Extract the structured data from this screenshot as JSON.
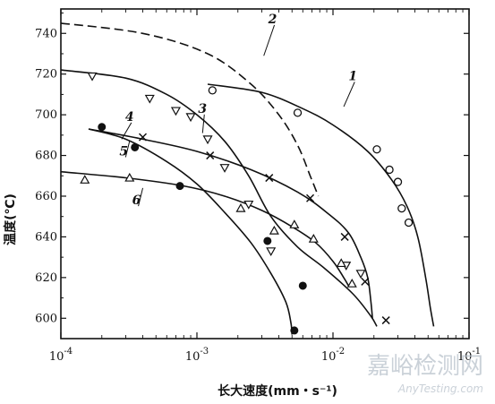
{
  "chart_data": {
    "type": "line",
    "xlabel": "长大速度(mm・s⁻¹)",
    "ylabel": "温度(℃)",
    "x_scale": "log",
    "xlim": [
      0.0001,
      0.1
    ],
    "ylim": [
      590,
      752
    ],
    "x_ticks": [
      {
        "value": 0.0001,
        "base": "10",
        "exp": "-4"
      },
      {
        "value": 0.001,
        "base": "10",
        "exp": "-3"
      },
      {
        "value": 0.01,
        "base": "10",
        "exp": "-2"
      },
      {
        "value": 0.1,
        "base": "10",
        "exp": "-1"
      }
    ],
    "y_ticks": [
      600,
      620,
      640,
      660,
      680,
      700,
      720,
      740
    ],
    "grid": false,
    "legend": "none",
    "series": [
      {
        "name": "1",
        "style": "solid",
        "marker": "circle-open",
        "line": [
          [
            0.0012,
            715
          ],
          [
            0.003,
            711
          ],
          [
            0.006,
            703
          ],
          [
            0.01,
            695
          ],
          [
            0.018,
            682
          ],
          [
            0.027,
            668
          ],
          [
            0.035,
            655
          ],
          [
            0.042,
            640
          ],
          [
            0.048,
            620
          ],
          [
            0.052,
            605
          ],
          [
            0.055,
            596
          ]
        ],
        "points": [
          [
            0.0013,
            712
          ],
          [
            0.0055,
            701
          ],
          [
            0.021,
            683
          ],
          [
            0.026,
            673
          ],
          [
            0.03,
            667
          ],
          [
            0.032,
            654
          ],
          [
            0.036,
            647
          ]
        ]
      },
      {
        "name": "2",
        "style": "dashed",
        "marker": "none",
        "line": [
          [
            0.0001,
            745
          ],
          [
            0.0004,
            740
          ],
          [
            0.0012,
            730
          ],
          [
            0.0025,
            715
          ],
          [
            0.004,
            700
          ],
          [
            0.0055,
            685
          ],
          [
            0.0068,
            670
          ],
          [
            0.0078,
            660
          ]
        ],
        "points": []
      },
      {
        "name": "3",
        "style": "solid",
        "marker": "triangle-down-open",
        "line": [
          [
            0.0001,
            722
          ],
          [
            0.0003,
            718
          ],
          [
            0.0006,
            710
          ],
          [
            0.001,
            700
          ],
          [
            0.0016,
            687
          ],
          [
            0.0024,
            670
          ],
          [
            0.0035,
            650
          ],
          [
            0.0055,
            635
          ],
          [
            0.0085,
            625
          ],
          [
            0.014,
            612
          ],
          [
            0.019,
            601
          ],
          [
            0.021,
            596
          ]
        ],
        "points": [
          [
            0.00017,
            719
          ],
          [
            0.00045,
            708
          ],
          [
            0.0007,
            702
          ],
          [
            0.0009,
            699
          ],
          [
            0.0012,
            688
          ],
          [
            0.0016,
            674
          ],
          [
            0.0024,
            656
          ],
          [
            0.0035,
            633
          ],
          [
            0.0125,
            626
          ],
          [
            0.016,
            622
          ]
        ]
      },
      {
        "name": "4",
        "style": "solid",
        "marker": "circle-filled",
        "line": [
          [
            0.00016,
            693
          ],
          [
            0.0003,
            688
          ],
          [
            0.0006,
            677
          ],
          [
            0.001,
            666
          ],
          [
            0.0016,
            652
          ],
          [
            0.0025,
            637
          ],
          [
            0.0035,
            622
          ],
          [
            0.0045,
            608
          ],
          [
            0.0049,
            598
          ],
          [
            0.005,
            592
          ]
        ],
        "points": [
          [
            0.0002,
            694
          ],
          [
            0.00035,
            684
          ],
          [
            0.00075,
            665
          ],
          [
            0.0033,
            638
          ],
          [
            0.006,
            616
          ],
          [
            0.0052,
            594
          ]
        ]
      },
      {
        "name": "5",
        "style": "solid",
        "marker": "cross",
        "line": [
          [
            0.00016,
            693
          ],
          [
            0.0004,
            688
          ],
          [
            0.001,
            682
          ],
          [
            0.0025,
            673
          ],
          [
            0.0055,
            662
          ],
          [
            0.009,
            652
          ],
          [
            0.013,
            642
          ],
          [
            0.016,
            630
          ],
          [
            0.018,
            620
          ],
          [
            0.019,
            608
          ],
          [
            0.0195,
            600
          ]
        ],
        "points": [
          [
            0.0004,
            689
          ],
          [
            0.00125,
            680
          ],
          [
            0.0034,
            669
          ],
          [
            0.0068,
            659
          ],
          [
            0.0122,
            640
          ],
          [
            0.0172,
            618
          ],
          [
            0.0245,
            599
          ]
        ]
      },
      {
        "name": "6",
        "style": "solid",
        "marker": "triangle-up-open",
        "line": [
          [
            0.0001,
            672
          ],
          [
            0.0003,
            669
          ],
          [
            0.0008,
            665
          ],
          [
            0.0016,
            660
          ],
          [
            0.003,
            653
          ],
          [
            0.005,
            645
          ],
          [
            0.0075,
            637
          ],
          [
            0.01,
            628
          ],
          [
            0.012,
            620
          ],
          [
            0.013,
            616
          ]
        ],
        "points": [
          [
            0.00015,
            668
          ],
          [
            0.00032,
            669
          ],
          [
            0.0021,
            654
          ],
          [
            0.0037,
            643
          ],
          [
            0.0052,
            646
          ],
          [
            0.0072,
            639
          ],
          [
            0.0115,
            627
          ],
          [
            0.0138,
            617
          ]
        ]
      }
    ],
    "labels": [
      {
        "text": "1",
        "at": [
          0.014,
          717
        ],
        "pointer_to": [
          0.012,
          704
        ]
      },
      {
        "text": "2",
        "at": [
          0.0036,
          745
        ],
        "pointer_to": [
          0.0031,
          729
        ]
      },
      {
        "text": "3",
        "at": [
          0.0011,
          701
        ],
        "pointer_to": [
          0.0011,
          691
        ]
      },
      {
        "text": "4",
        "at": [
          0.00032,
          697
        ],
        "pointer_to": [
          0.00028,
          688
        ]
      },
      {
        "text": "5",
        "at": [
          0.00029,
          680
        ],
        "pointer_to": [
          0.00032,
          687
        ]
      },
      {
        "text": "6",
        "at": [
          0.00036,
          656
        ],
        "pointer_to": [
          0.0004,
          664
        ]
      }
    ]
  },
  "watermark": {
    "main": "嘉峪检测网",
    "sub": "AnyTesting.com"
  }
}
